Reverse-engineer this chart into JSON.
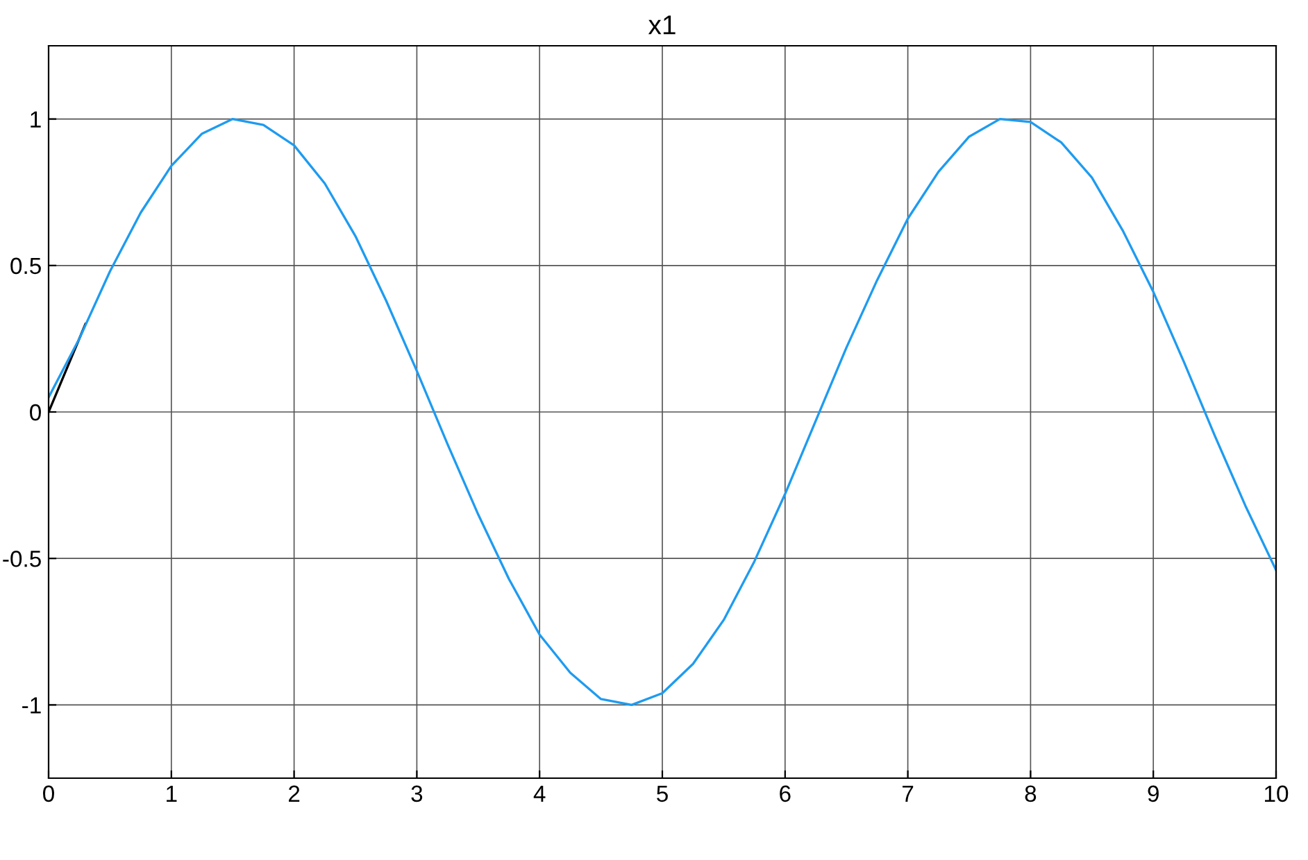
{
  "chart_data": {
    "type": "line",
    "title": "x1",
    "series": [
      {
        "color": "#000000",
        "x": [
          0,
          0.3
        ],
        "values": [
          0,
          0.3
        ]
      },
      {
        "color": "#1e9bf0",
        "x": [
          0,
          0.25,
          0.5,
          0.75,
          1,
          1.25,
          1.5,
          1.75,
          2,
          2.25,
          2.5,
          2.75,
          3,
          3.25,
          3.5,
          3.75,
          4,
          4.25,
          4.5,
          4.75,
          5,
          5.25,
          5.5,
          5.75,
          6,
          6.25,
          6.5,
          6.75,
          7,
          7.25,
          7.5,
          7.75,
          8,
          8.25,
          8.5,
          8.75,
          9,
          9.25,
          9.5,
          9.75,
          10
        ],
        "values": [
          0.05,
          0.25,
          0.48,
          0.68,
          0.84,
          0.95,
          1.0,
          0.98,
          0.91,
          0.78,
          0.6,
          0.38,
          0.14,
          -0.11,
          -0.35,
          -0.57,
          -0.76,
          -0.89,
          -0.98,
          -1.0,
          -0.96,
          -0.86,
          -0.71,
          -0.51,
          -0.28,
          -0.03,
          0.22,
          0.45,
          0.66,
          0.82,
          0.94,
          1.0,
          0.99,
          0.92,
          0.8,
          0.62,
          0.41,
          0.17,
          -0.08,
          -0.32,
          -0.54
        ]
      }
    ],
    "xlim": [
      0,
      10
    ],
    "xticks": [
      0,
      1,
      2,
      3,
      4,
      5,
      6,
      7,
      8,
      9,
      10
    ],
    "ylim": [
      -1.25,
      1.25
    ],
    "yticks": [
      -1,
      -0.5,
      0,
      0.5,
      1
    ],
    "grid": true,
    "marker": "none",
    "line_style": "solid"
  }
}
